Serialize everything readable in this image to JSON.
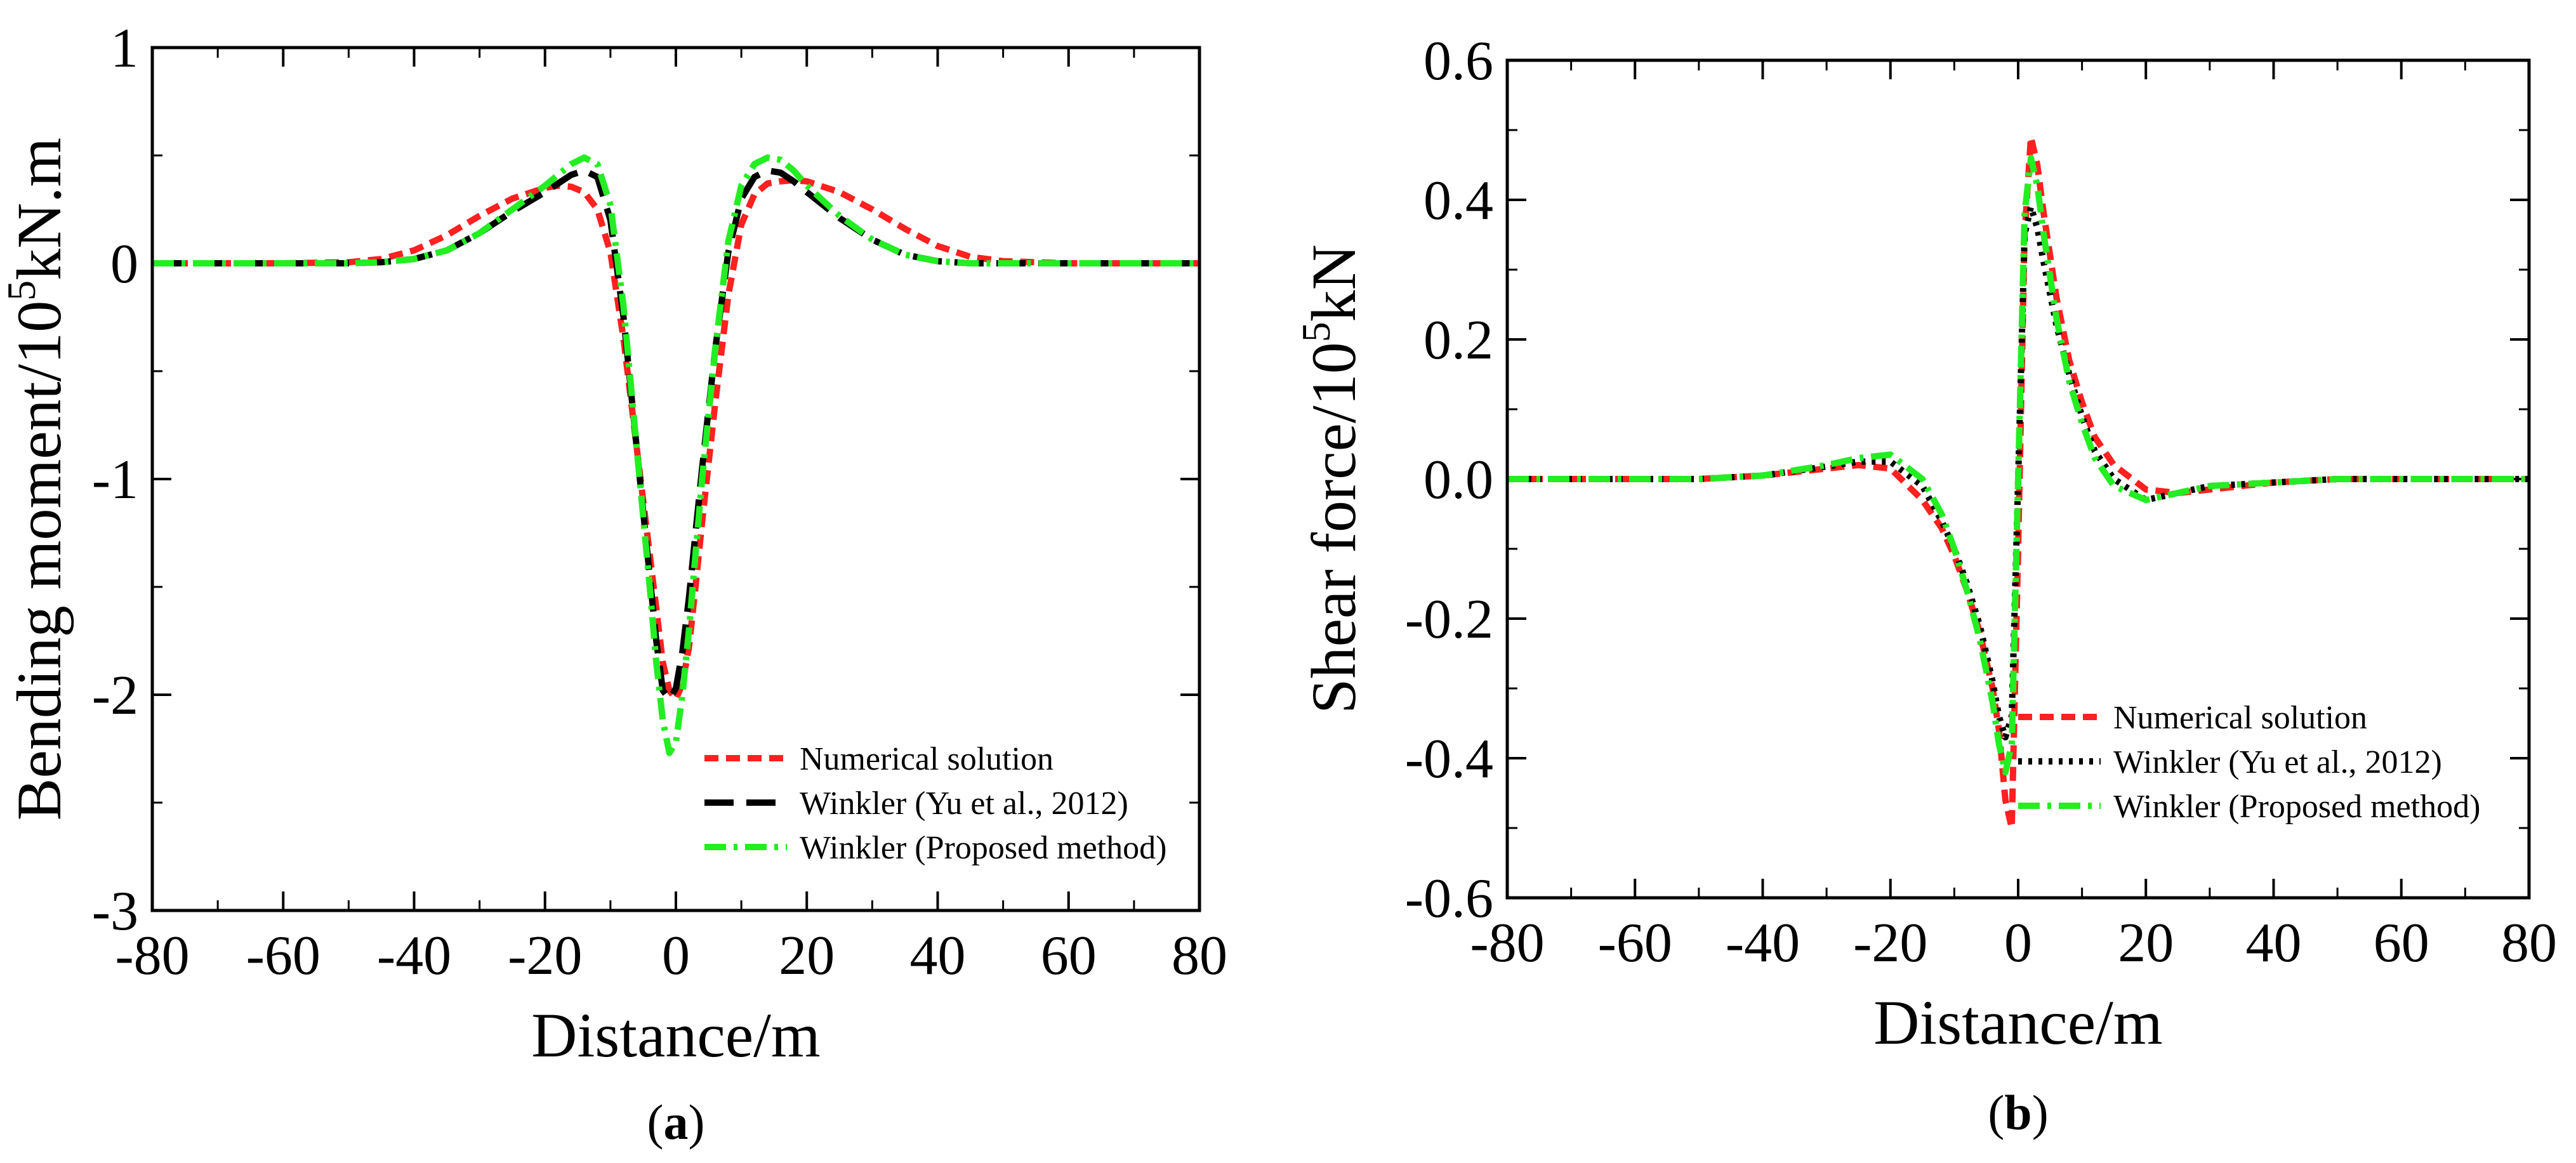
{
  "colors": {
    "numerical": "#ff2020",
    "yu": "#000000",
    "proposed": "#22ee22"
  },
  "chart_data": [
    {
      "type": "line",
      "caption_label": "a",
      "xlabel": "Distance/m",
      "ylabel_main": "Bending moment/10",
      "ylabel_sup": "5",
      "ylabel_unit": "kN.m",
      "xlim": [
        -80,
        80
      ],
      "ylim": [
        -3,
        1
      ],
      "xticks": [
        -80,
        -60,
        -40,
        -20,
        0,
        20,
        40,
        60,
        80
      ],
      "xtick_labels": [
        "-80",
        "-60",
        "-40",
        "-20",
        "0",
        "20",
        "40",
        "60",
        "80"
      ],
      "yticks": [
        1,
        0,
        -1,
        -2,
        -3
      ],
      "ytick_labels": [
        "1",
        "0",
        "-1",
        "-2",
        "-3"
      ],
      "legend_position": "lower-right",
      "x": [
        -80,
        -70,
        -60,
        -50,
        -45,
        -40,
        -35,
        -30,
        -25,
        -20,
        -18,
        -16,
        -14,
        -12,
        -10,
        -8,
        -6,
        -4,
        -3,
        -2,
        -1,
        0,
        1,
        2,
        3,
        4,
        6,
        8,
        10,
        12,
        14,
        16,
        18,
        20,
        25,
        30,
        35,
        40,
        45,
        50,
        60,
        70,
        80
      ],
      "series": [
        {
          "name": "Numerical solution",
          "color_key": "numerical",
          "style": "short-dash",
          "values": [
            0,
            0,
            0,
            0.005,
            0.02,
            0.06,
            0.13,
            0.22,
            0.3,
            0.35,
            0.36,
            0.355,
            0.33,
            0.25,
            0.05,
            -0.35,
            -0.85,
            -1.35,
            -1.6,
            -1.85,
            -1.98,
            -2.02,
            -1.95,
            -1.78,
            -1.5,
            -1.2,
            -0.65,
            -0.15,
            0.18,
            0.32,
            0.37,
            0.38,
            0.385,
            0.38,
            0.33,
            0.25,
            0.16,
            0.08,
            0.03,
            0.01,
            0,
            0,
            0
          ]
        },
        {
          "name": "Winkler (Yu et al., 2012)",
          "color_key": "yu",
          "style": "long-dash",
          "values": [
            0,
            0,
            0,
            0,
            0.005,
            0.02,
            0.06,
            0.14,
            0.24,
            0.33,
            0.37,
            0.41,
            0.43,
            0.4,
            0.2,
            -0.25,
            -0.85,
            -1.45,
            -1.75,
            -1.98,
            -2.02,
            -1.97,
            -1.8,
            -1.55,
            -1.25,
            -0.95,
            -0.4,
            0.05,
            0.3,
            0.4,
            0.43,
            0.42,
            0.38,
            0.33,
            0.21,
            0.11,
            0.04,
            0.01,
            0,
            0,
            0,
            0,
            0
          ]
        },
        {
          "name": "Winkler (Proposed method)",
          "color_key": "proposed",
          "style": "dash-dot",
          "values": [
            0,
            0,
            0,
            0,
            0.005,
            0.02,
            0.06,
            0.14,
            0.25,
            0.36,
            0.41,
            0.46,
            0.49,
            0.46,
            0.27,
            -0.2,
            -0.85,
            -1.5,
            -1.85,
            -2.12,
            -2.27,
            -2.22,
            -2.0,
            -1.7,
            -1.35,
            -1.0,
            -0.4,
            0.1,
            0.36,
            0.46,
            0.49,
            0.48,
            0.43,
            0.36,
            0.22,
            0.11,
            0.04,
            0.01,
            0,
            0,
            0,
            0,
            0
          ]
        }
      ]
    },
    {
      "type": "line",
      "caption_label": "b",
      "xlabel": "Distance/m",
      "ylabel_main": "Shear force/10",
      "ylabel_sup": "5",
      "ylabel_unit": "kN",
      "xlim": [
        -80,
        80
      ],
      "ylim": [
        -0.6,
        0.6
      ],
      "xticks": [
        -80,
        -60,
        -40,
        -20,
        0,
        20,
        40,
        60,
        80
      ],
      "xtick_labels": [
        "-80",
        "-60",
        "-40",
        "-20",
        "0",
        "20",
        "40",
        "60",
        "80"
      ],
      "yticks": [
        0.6,
        0.4,
        0.2,
        0.0,
        -0.2,
        -0.4,
        -0.6
      ],
      "ytick_labels": [
        "0.6",
        "0.4",
        "0.2",
        "0.0",
        "-0.2",
        "-0.4",
        "-0.6"
      ],
      "legend_position": "lower-right",
      "x": [
        -80,
        -60,
        -50,
        -40,
        -30,
        -25,
        -20,
        -15,
        -12,
        -10,
        -8,
        -6,
        -4,
        -3,
        -2,
        -1,
        0,
        1,
        2,
        3,
        4,
        6,
        8,
        10,
        12,
        15,
        20,
        25,
        30,
        40,
        50,
        60,
        80
      ],
      "series": [
        {
          "name": "Numerical solution",
          "color_key": "numerical",
          "style": "short-dash",
          "values": [
            0,
            0,
            0,
            0.005,
            0.015,
            0.02,
            0.015,
            -0.03,
            -0.07,
            -0.11,
            -0.16,
            -0.22,
            -0.3,
            -0.36,
            -0.46,
            -0.5,
            -0.1,
            0.35,
            0.49,
            0.45,
            0.38,
            0.26,
            0.17,
            0.11,
            0.06,
            0.02,
            -0.015,
            -0.02,
            -0.015,
            -0.005,
            0,
            0,
            0
          ]
        },
        {
          "name": "Winkler (Yu et al., 2012)",
          "color_key": "yu",
          "style": "dotted",
          "values": [
            0,
            0,
            0,
            0.005,
            0.018,
            0.025,
            0.025,
            -0.01,
            -0.06,
            -0.1,
            -0.15,
            -0.21,
            -0.29,
            -0.34,
            -0.37,
            -0.34,
            0.0,
            0.35,
            0.39,
            0.36,
            0.31,
            0.22,
            0.15,
            0.09,
            0.04,
            0.0,
            -0.03,
            -0.02,
            -0.01,
            -0.005,
            0,
            0,
            0
          ]
        },
        {
          "name": "Winkler (Proposed method)",
          "color_key": "proposed",
          "style": "dash-dot",
          "values": [
            0,
            0,
            0,
            0.005,
            0.02,
            0.03,
            0.035,
            0.0,
            -0.05,
            -0.1,
            -0.16,
            -0.23,
            -0.32,
            -0.38,
            -0.42,
            -0.38,
            0.0,
            0.38,
            0.46,
            0.42,
            0.35,
            0.23,
            0.14,
            0.08,
            0.03,
            -0.01,
            -0.03,
            -0.02,
            -0.01,
            -0.005,
            0,
            0,
            0
          ]
        }
      ]
    }
  ]
}
